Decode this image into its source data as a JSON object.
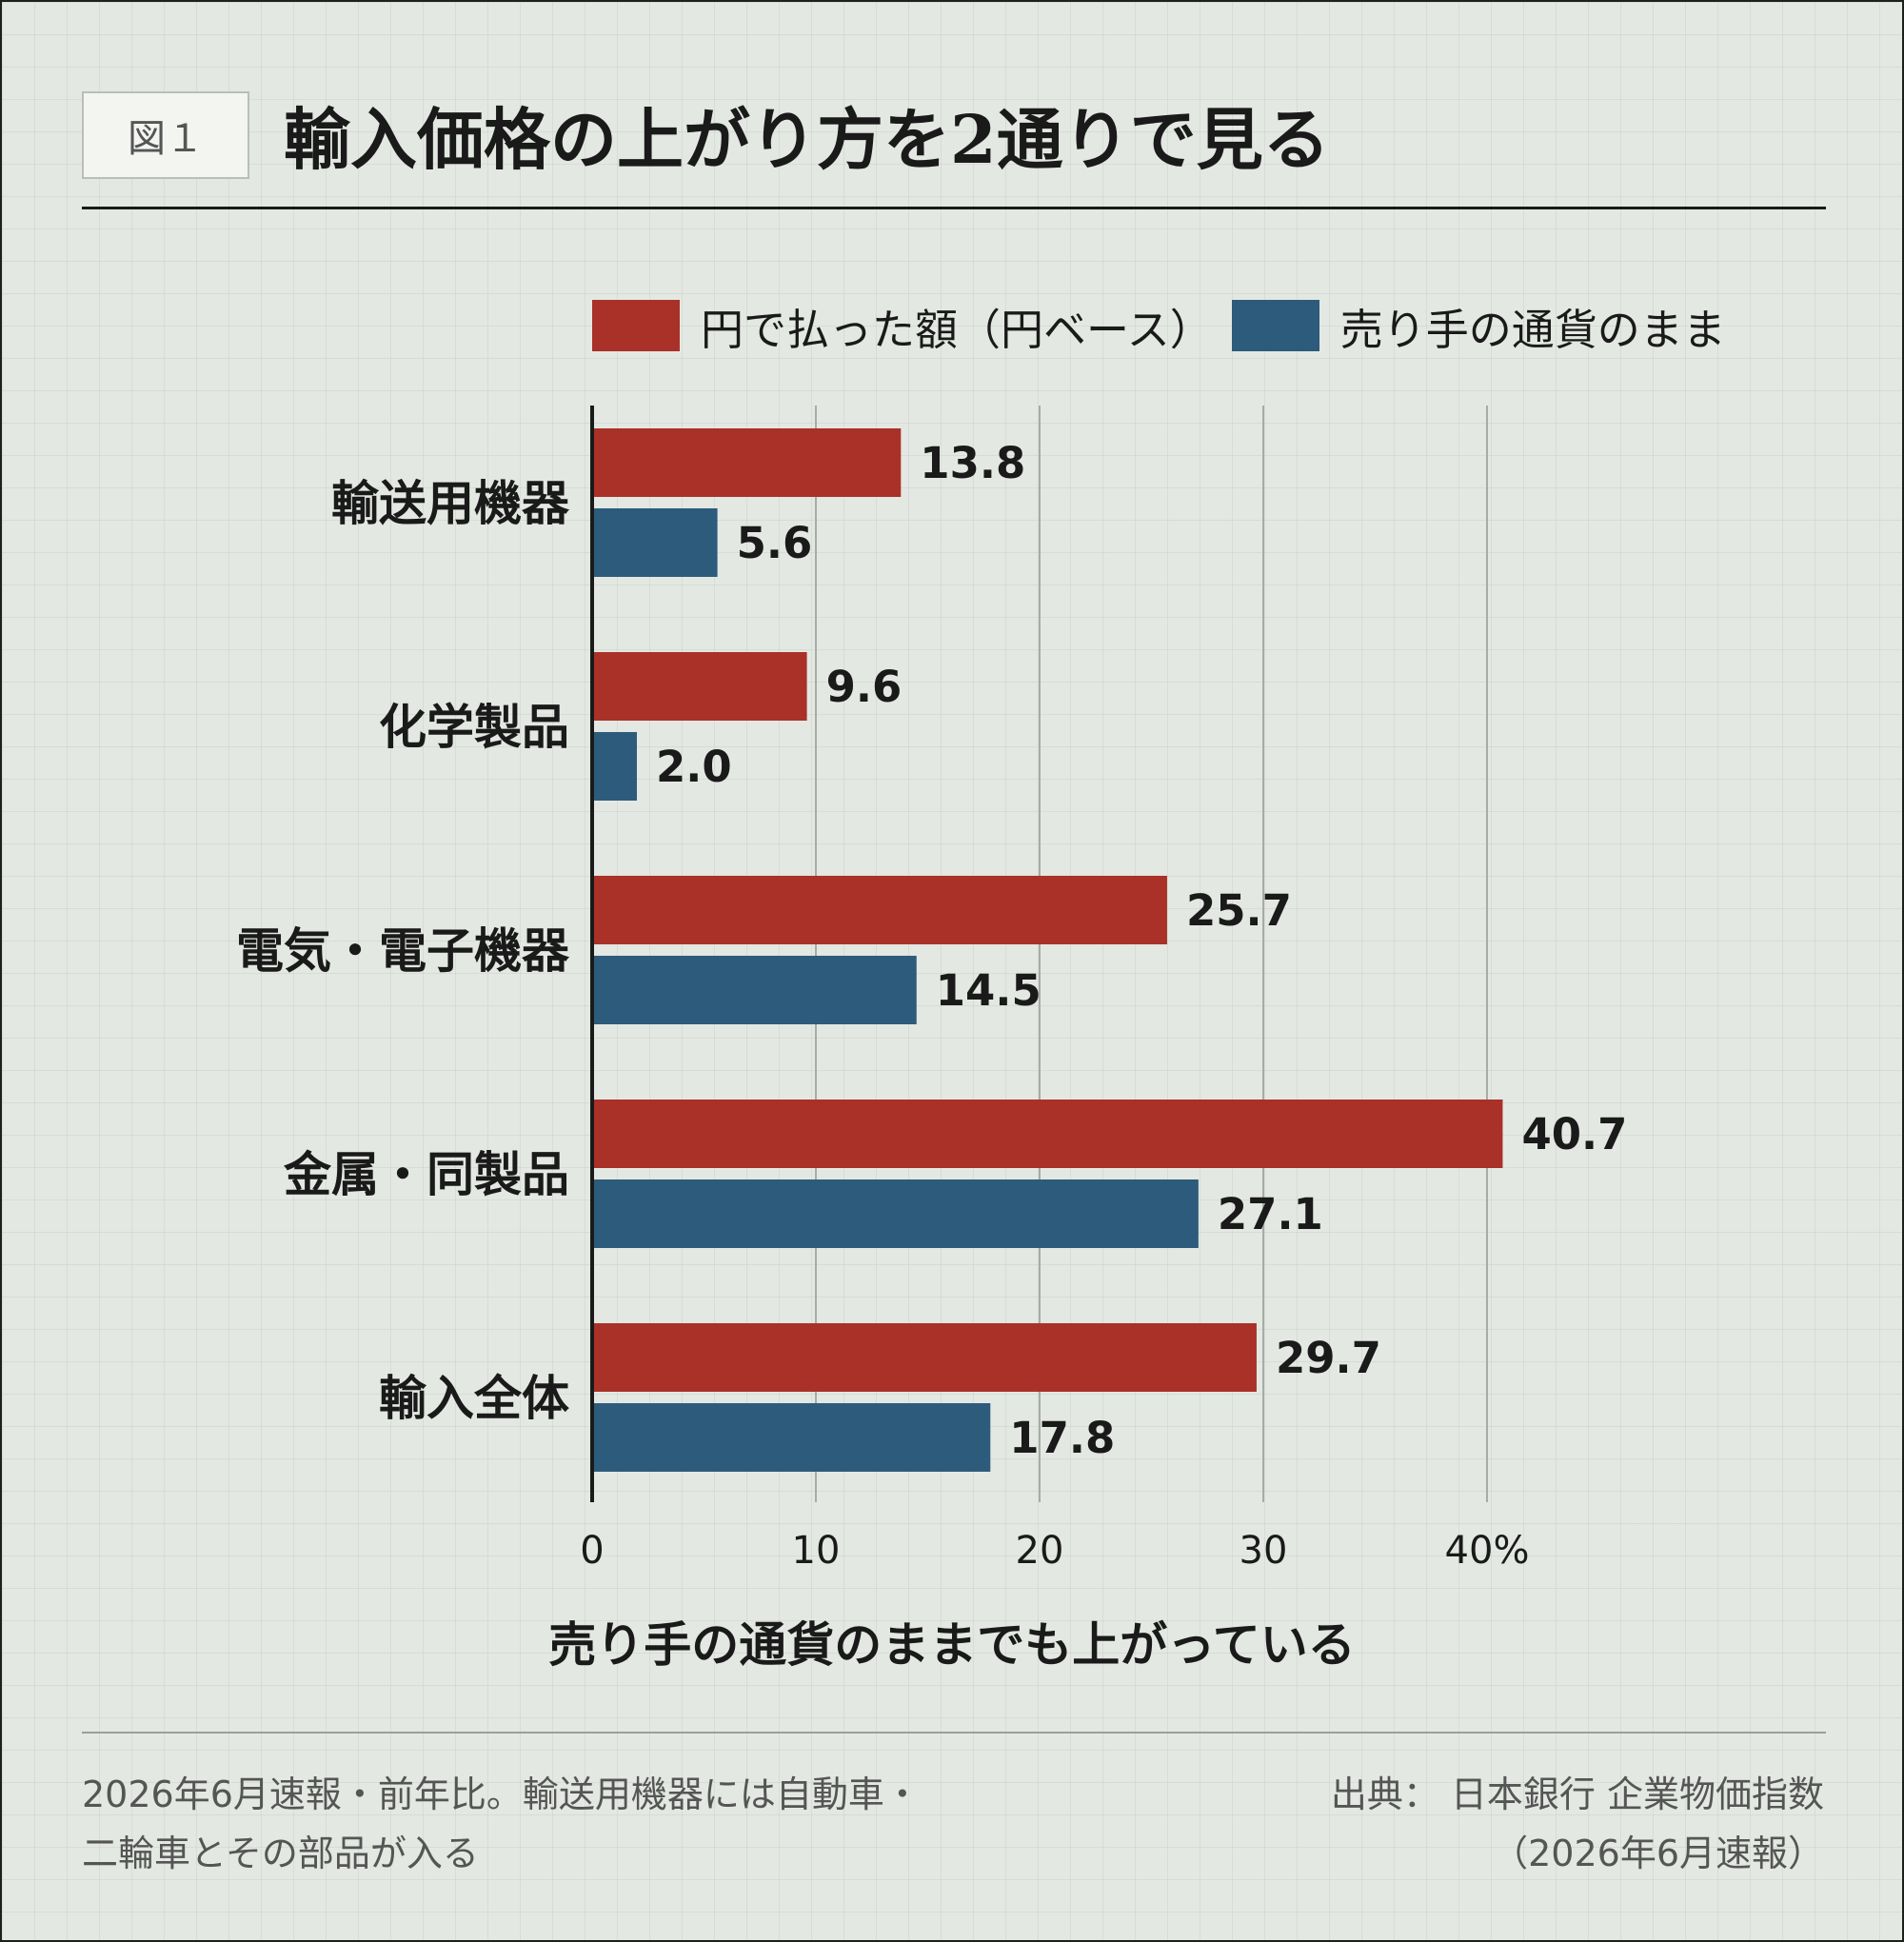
{
  "figure_label": "図１",
  "title": "輸入価格の上がり方を2通りで見る",
  "legend": [
    {
      "label": "円で払った額（円ベース）",
      "color": "#a93128"
    },
    {
      "label": "売り手の通貨のまま",
      "color": "#2d5b7b"
    }
  ],
  "chart_data": {
    "type": "bar",
    "orientation": "horizontal",
    "categories": [
      "輸送用機器",
      "化学製品",
      "電気・電子機器",
      "金属・同製品",
      "輸入全体"
    ],
    "series": [
      {
        "name": "円で払った額（円ベース）",
        "color": "#a93128",
        "values": [
          13.8,
          9.6,
          25.7,
          40.7,
          29.7
        ]
      },
      {
        "name": "売り手の通貨のまま",
        "color": "#2d5b7b",
        "values": [
          5.6,
          2.0,
          14.5,
          27.1,
          17.8
        ]
      }
    ],
    "xlim": [
      0,
      40
    ],
    "x_ticks": [
      0,
      10,
      20,
      30,
      40
    ],
    "x_tick_labels": [
      "0",
      "10",
      "20",
      "30",
      "40%"
    ],
    "grid": "vertical",
    "legend_position": "top-right"
  },
  "caption": "売り手の通貨のままでも上がっている",
  "note_left": [
    "2026年6月速報・前年比。輸送用機器には自動車・",
    "二輪車とその部品が入る"
  ],
  "note_right": [
    "出典：  日本銀行  企業物価指数",
    "（2026年6月速報）"
  ]
}
